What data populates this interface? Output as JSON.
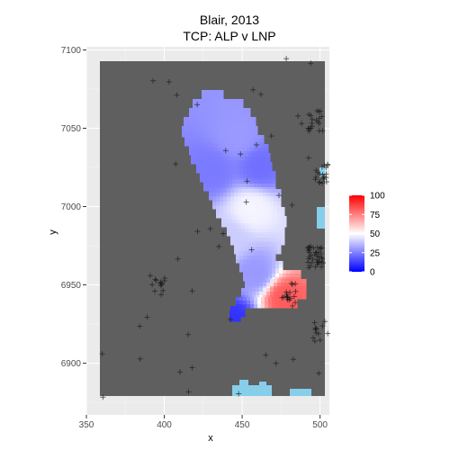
{
  "chart_data": {
    "type": "heatmap",
    "title": "Blair, 2013",
    "subtitle": "TCP: ALP v LNP",
    "xlabel": "x",
    "ylabel": "y",
    "xlim": [
      350,
      506
    ],
    "ylim": [
      6867,
      7102
    ],
    "x_ticks": [
      350,
      400,
      450,
      500
    ],
    "y_ticks": [
      6900,
      6950,
      7000,
      7050,
      7100
    ],
    "grid": true,
    "legend_position": "right",
    "legend": {
      "ticks": [
        0,
        25,
        50,
        75,
        100
      ],
      "low_color": "#0000ff",
      "mid_color": "#ffffff",
      "high_color": "#ff0000",
      "midpoint": 50
    },
    "colors": {
      "panel_background": "#ebebeb",
      "missing_fill": "#5f5f5f",
      "outside_fill": "#87ceeb",
      "points": "#1a1a1a"
    },
    "surface_peaks": [
      {
        "x": 460,
        "y": 7026,
        "value": 22
      },
      {
        "x": 430,
        "y": 7024,
        "value": 24
      },
      {
        "x": 446,
        "y": 7045,
        "value": 30
      },
      {
        "x": 455,
        "y": 7000,
        "value": 48
      },
      {
        "x": 440,
        "y": 6980,
        "value": 40
      },
      {
        "x": 458,
        "y": 6958,
        "value": 30
      },
      {
        "x": 476,
        "y": 6943,
        "value": 82
      },
      {
        "x": 444,
        "y": 6928,
        "value": 10
      }
    ],
    "station_clusters": [
      {
        "x": 396,
        "y": 6950,
        "count": 14
      },
      {
        "x": 480,
        "y": 6945,
        "count": 18
      },
      {
        "x": 497,
        "y": 6968,
        "count": 40
      },
      {
        "x": 500,
        "y": 7020,
        "count": 20
      },
      {
        "x": 497,
        "y": 7055,
        "count": 18
      },
      {
        "x": 500,
        "y": 6920,
        "count": 12
      }
    ]
  }
}
